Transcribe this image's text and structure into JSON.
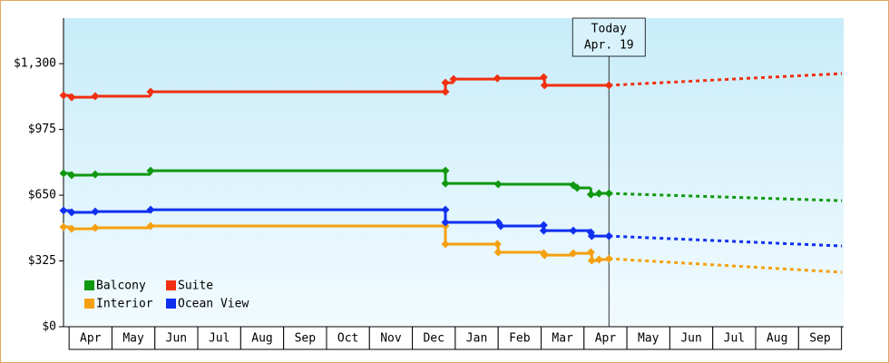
{
  "chart_data": {
    "type": "step-line",
    "xlim": [
      -0.13,
      18.05
    ],
    "xticks": [
      {
        "value": 0.5,
        "label": "Apr"
      },
      {
        "value": 1.5,
        "label": "May"
      },
      {
        "value": 2.5,
        "label": "Jun"
      },
      {
        "value": 3.5,
        "label": "Jul"
      },
      {
        "value": 4.5,
        "label": "Aug"
      },
      {
        "value": 5.5,
        "label": "Sep"
      },
      {
        "value": 6.5,
        "label": "Oct"
      },
      {
        "value": 7.5,
        "label": "Nov"
      },
      {
        "value": 8.5,
        "label": "Dec"
      },
      {
        "value": 9.5,
        "label": "Jan"
      },
      {
        "value": 10.5,
        "label": "Feb"
      },
      {
        "value": 11.5,
        "label": "Mar"
      },
      {
        "value": 12.5,
        "label": "Apr"
      },
      {
        "value": 13.5,
        "label": "May"
      },
      {
        "value": 14.5,
        "label": "Jun"
      },
      {
        "value": 15.5,
        "label": "Jul"
      },
      {
        "value": 16.5,
        "label": "Aug"
      },
      {
        "value": 17.5,
        "label": "Sep"
      }
    ],
    "ylim": [
      0,
      1525
    ],
    "yticks": [
      {
        "value": 0,
        "label": "$0"
      },
      {
        "value": 325,
        "label": "$325"
      },
      {
        "value": 650,
        "label": "$650"
      },
      {
        "value": 975,
        "label": "$975"
      },
      {
        "value": 1300,
        "label": "$1,300"
      }
    ],
    "legend": "lower left",
    "today": {
      "x": 12.58,
      "label": "Today",
      "date": "Apr. 19"
    },
    "series": [
      {
        "name": "Balcony",
        "color": "#109810",
        "x": [
          -0.13,
          0.06,
          0.61,
          1.9,
          8.77,
          8.77,
          10.0,
          11.75,
          11.84,
          12.16,
          12.35,
          12.58
        ],
        "values": [
          758,
          749,
          753,
          771,
          771,
          708,
          704,
          699,
          686,
          654,
          659,
          659
        ],
        "forecast_x": [
          12.58,
          18.01
        ],
        "forecast_values": [
          659,
          623
        ]
      },
      {
        "name": "Suite",
        "color": "#f03010",
        "x": [
          -0.13,
          0.06,
          0.61,
          1.9,
          8.77,
          8.77,
          8.96,
          9.98,
          11.06,
          11.08,
          12.58
        ],
        "values": [
          1143,
          1134,
          1139,
          1161,
          1161,
          1206,
          1224,
          1228,
          1233,
          1193,
          1193
        ],
        "forecast_x": [
          12.58,
          18.01
        ],
        "forecast_values": [
          1193,
          1251
        ]
      },
      {
        "name": "Interior",
        "color": "#f5a010",
        "x": [
          -0.13,
          0.06,
          0.61,
          1.9,
          8.77,
          8.77,
          9.98,
          10.0,
          11.06,
          11.08,
          11.75,
          12.16,
          12.18,
          12.35,
          12.58
        ],
        "values": [
          493,
          484,
          489,
          498,
          498,
          408,
          408,
          368,
          363,
          354,
          363,
          368,
          327,
          332,
          336
        ],
        "forecast_x": [
          12.58,
          18.01
        ],
        "forecast_values": [
          336,
          269
        ]
      },
      {
        "name": "Ocean View",
        "color": "#1030f0",
        "x": [
          -0.13,
          0.06,
          0.61,
          1.9,
          8.77,
          8.77,
          10.0,
          10.06,
          11.06,
          11.06,
          11.75,
          12.16,
          12.18,
          12.58
        ],
        "values": [
          574,
          565,
          569,
          578,
          578,
          516,
          516,
          498,
          502,
          475,
          475,
          466,
          448,
          448
        ],
        "forecast_x": [
          12.58,
          18.01
        ],
        "forecast_values": [
          448,
          399
        ]
      }
    ]
  }
}
